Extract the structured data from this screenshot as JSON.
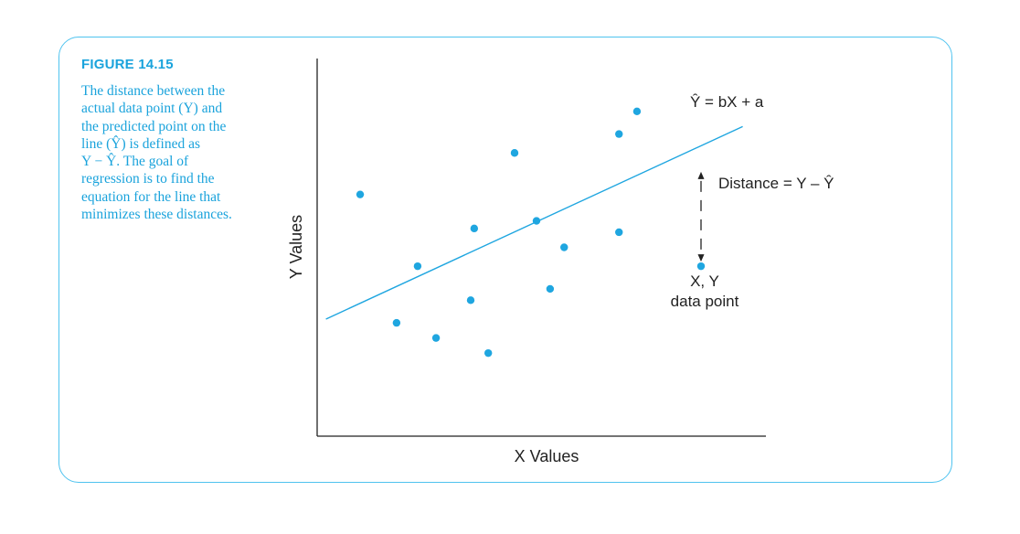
{
  "figure": {
    "label": "FIGURE 14.15",
    "caption": "The distance between the\nactual data point (Y) and\nthe predicted point on the\nline (Ŷ) is defined as\nY − Ŷ. The goal of\nregression is to find the\nequation for the line that\nminimizes these distances."
  },
  "colors": {
    "accent": "#1aa3dc",
    "frame": "#4fc3ef",
    "point": "#1fa6e0",
    "text": "#222222"
  },
  "chart_data": {
    "type": "scatter",
    "title": "",
    "xlabel": "X Values",
    "ylabel": "Y Values",
    "xlim": [
      0,
      10
    ],
    "ylim": [
      0,
      10
    ],
    "grid": false,
    "points": [
      {
        "x": 0.98,
        "y": 6.4
      },
      {
        "x": 1.81,
        "y": 3.0
      },
      {
        "x": 2.29,
        "y": 4.5
      },
      {
        "x": 2.71,
        "y": 2.6
      },
      {
        "x": 3.5,
        "y": 3.6
      },
      {
        "x": 3.58,
        "y": 5.5
      },
      {
        "x": 3.9,
        "y": 2.2
      },
      {
        "x": 4.5,
        "y": 7.5
      },
      {
        "x": 5.31,
        "y": 3.9
      },
      {
        "x": 5.0,
        "y": 5.7
      },
      {
        "x": 5.63,
        "y": 5.0
      },
      {
        "x": 6.88,
        "y": 5.4
      },
      {
        "x": 6.88,
        "y": 8.0
      },
      {
        "x": 7.29,
        "y": 8.6
      },
      {
        "x": 8.75,
        "y": 4.5
      }
    ],
    "regression_line": {
      "x": [
        0.2,
        9.7
      ],
      "y": [
        3.1,
        8.2
      ]
    },
    "annotations": {
      "equation": "Ŷ = bX + a",
      "distance": "Distance = Y – Ŷ",
      "point_label_1": "X, Y",
      "point_label_2": "data point"
    },
    "distance_marker": {
      "x": 8.75,
      "y_from": 7.0,
      "y_to": 4.5
    }
  }
}
